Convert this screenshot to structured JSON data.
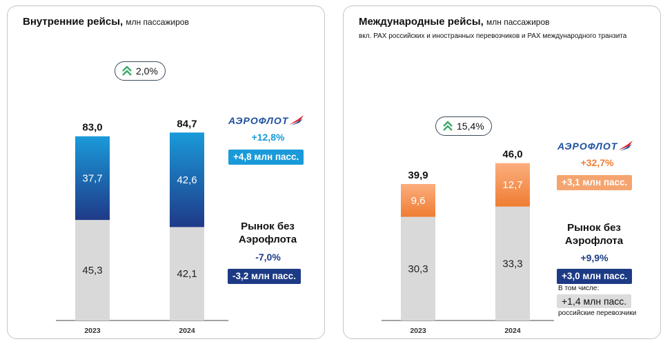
{
  "domestic": {
    "title": "Внутренние рейсы,",
    "unit": "млн пассажиров",
    "growth_pct": "2,0%",
    "airline_logo": "АЭРОФЛОТ",
    "airline_growth": "+12,8%",
    "airline_delta": "+4,8 млн пасс.",
    "market_label_1": "Рынок без",
    "market_label_2": "Аэрофлота",
    "market_growth": "-7,0%",
    "market_delta": "-3,2 млн пасс."
  },
  "international": {
    "title": "Международные рейсы,",
    "unit": "млн пассажиров",
    "subtitle": "вкл. PAX российских и иностранных перевозчиков и PAX международного транзита",
    "growth_pct": "15,4%",
    "airline_logo": "АЭРОФЛОТ",
    "airline_growth": "+32,7%",
    "airline_delta": "+3,1 млн пасс.",
    "market_label_1": "Рынок без",
    "market_label_2": "Аэрофлота",
    "market_growth": "+9,9%",
    "market_delta": "+3,0 млн пасс.",
    "incl_label": "В том числе:",
    "russian_delta": "+1,4 млн пасс.",
    "russian_label": "российские перевозчики"
  },
  "colors": {
    "blue_top": "#1a9ad9",
    "blue_bottom": "#1f3a88",
    "orange_top": "#fbae7e",
    "orange_bottom": "#ef7d32",
    "gray_bar": "#d9d9d9",
    "light_blue_text": "#1a9ad9",
    "navy_text": "#1d3b85",
    "orange_text": "#ef7d32",
    "green_chevron": "#3aa86a"
  },
  "chart_data": [
    {
      "type": "bar",
      "title": "Внутренние рейсы, млн пассажиров",
      "categories": [
        "2023",
        "2024"
      ],
      "series": [
        {
          "name": "Рынок без Аэрофлота",
          "values": [
            45.3,
            42.1
          ],
          "labels": [
            "45,3",
            "42,1"
          ]
        },
        {
          "name": "Аэрофлот",
          "values": [
            37.7,
            42.6
          ],
          "labels": [
            "37,7",
            "42,6"
          ]
        }
      ],
      "totals": [
        83.0,
        84.7
      ],
      "total_labels": [
        "83,0",
        "84,7"
      ],
      "stacked": true,
      "ylim": [
        0,
        100
      ]
    },
    {
      "type": "bar",
      "title": "Международные рейсы, млн пассажиров",
      "categories": [
        "2023",
        "2024"
      ],
      "series": [
        {
          "name": "Рынок без Аэрофлота",
          "values": [
            30.3,
            33.3
          ],
          "labels": [
            "30,3",
            "33,3"
          ]
        },
        {
          "name": "Аэрофлот",
          "values": [
            9.6,
            12.7
          ],
          "labels": [
            "9,6",
            "12,7"
          ]
        }
      ],
      "totals": [
        39.9,
        46.0
      ],
      "total_labels": [
        "39,9",
        "46,0"
      ],
      "stacked": true,
      "ylim": [
        0,
        54.4
      ]
    }
  ]
}
